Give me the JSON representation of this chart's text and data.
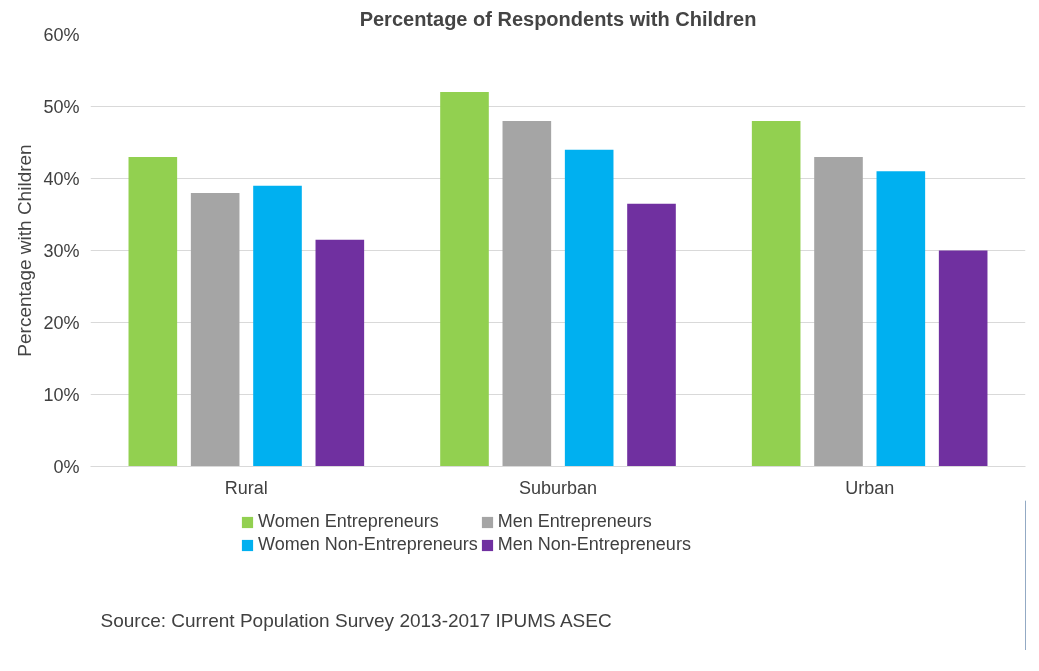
{
  "chart_data": {
    "type": "bar",
    "title": "Percentage of Respondents with Children",
    "ylabel": "Percentage with Children",
    "categories": [
      "Rural",
      "Suburban",
      "Urban"
    ],
    "series": [
      {
        "name": "Women Entrepreneurs",
        "color": "#92d050",
        "values": [
          43,
          52,
          48
        ]
      },
      {
        "name": "Men Entrepreneurs",
        "color": "#a5a5a5",
        "values": [
          38,
          48,
          43
        ]
      },
      {
        "name": "Women Non-Entrepreneurs",
        "color": "#00b0f0",
        "values": [
          39,
          44,
          41
        ]
      },
      {
        "name": "Men Non-Entrepreneurs",
        "color": "#7030a0",
        "values": [
          31.5,
          36.5,
          30
        ]
      }
    ],
    "ylim": [
      0,
      60
    ],
    "yticks": [
      {
        "value": 0,
        "label": "0%"
      },
      {
        "value": 10,
        "label": "10%"
      },
      {
        "value": 20,
        "label": "20%"
      },
      {
        "value": 30,
        "label": "30%"
      },
      {
        "value": 40,
        "label": "40%"
      },
      {
        "value": 50,
        "label": "50%"
      },
      {
        "value": 60,
        "label": "60%"
      }
    ],
    "grid": "y",
    "legend": "bottom",
    "annotations": [
      "Source: Current Population Survey 2013-2017 IPUMS ASEC"
    ]
  }
}
